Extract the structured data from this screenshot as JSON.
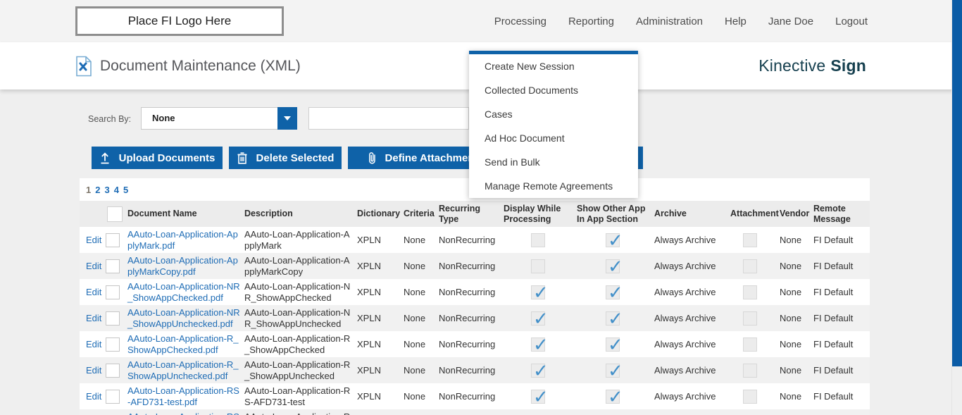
{
  "topbar": {
    "logo_placeholder": "Place FI Logo Here",
    "nav_items": [
      "Processing",
      "Reporting",
      "Administration",
      "Help",
      "Jane Doe",
      "Logout"
    ]
  },
  "header": {
    "page_title": "Document Maintenance (XML)",
    "brand_regular": "Kinective",
    "brand_bold": "Sign"
  },
  "processing_menu": {
    "items": [
      "Create New Session",
      "Collected Documents",
      "Cases",
      "Ad Hoc Document",
      "Send in Bulk",
      "Manage Remote Agreements"
    ]
  },
  "search": {
    "label": "Search By:",
    "selected_option": "None",
    "query_value": "",
    "query_placeholder": ""
  },
  "toolbar": {
    "upload_label": "Upload Documents",
    "delete_label": "Delete Selected",
    "attachment_label": "Define Attachment",
    "icons": [
      "upload-icon",
      "trash-icon",
      "paperclip-icon"
    ]
  },
  "pagination": {
    "pages": [
      "1",
      "2",
      "3",
      "4",
      "5"
    ],
    "current_page": "1"
  },
  "table": {
    "edit_label": "Edit",
    "columns": [
      "Document Name",
      "Description",
      "Dictionary",
      "Criteria",
      "Recurring Type",
      "Display While Processing",
      "Show Other App In App Section",
      "Archive",
      "Attachment",
      "Vendor",
      "Remote Message"
    ],
    "rows": [
      {
        "edit": "Edit",
        "name": "AAuto-Loan-Application-ApplyMark.pdf",
        "description": "AAuto-Loan-Application-ApplyMark",
        "dictionary": "XPLN",
        "criteria": "None",
        "recurring": "NonRecurring",
        "display_while_processing": false,
        "show_other_app": true,
        "archive": "Always Archive",
        "attachment": false,
        "vendor": "None",
        "remote_message": "FI Default"
      },
      {
        "edit": "Edit",
        "name": "AAuto-Loan-Application-ApplyMarkCopy.pdf",
        "description": "AAuto-Loan-Application-ApplyMarkCopy",
        "dictionary": "XPLN",
        "criteria": "None",
        "recurring": "NonRecurring",
        "display_while_processing": false,
        "show_other_app": true,
        "archive": "Always Archive",
        "attachment": false,
        "vendor": "None",
        "remote_message": "FI Default"
      },
      {
        "edit": "Edit",
        "name": "AAuto-Loan-Application-NR_ShowAppChecked.pdf",
        "description": "AAuto-Loan-Application-NR_ShowAppChecked",
        "dictionary": "XPLN",
        "criteria": "None",
        "recurring": "NonRecurring",
        "display_while_processing": true,
        "show_other_app": true,
        "archive": "Always Archive",
        "attachment": false,
        "vendor": "None",
        "remote_message": "FI Default"
      },
      {
        "edit": "Edit",
        "name": "AAuto-Loan-Application-NR_ShowAppUnchecked.pdf",
        "description": "AAuto-Loan-Application-NR_ShowAppUnchecked",
        "dictionary": "XPLN",
        "criteria": "None",
        "recurring": "NonRecurring",
        "display_while_processing": true,
        "show_other_app": true,
        "archive": "Always Archive",
        "attachment": false,
        "vendor": "None",
        "remote_message": "FI Default"
      },
      {
        "edit": "Edit",
        "name": "AAuto-Loan-Application-R_ShowAppChecked.pdf",
        "description": "AAuto-Loan-Application-R_ShowAppChecked",
        "dictionary": "XPLN",
        "criteria": "None",
        "recurring": "NonRecurring",
        "display_while_processing": true,
        "show_other_app": true,
        "archive": "Always Archive",
        "attachment": false,
        "vendor": "None",
        "remote_message": "FI Default"
      },
      {
        "edit": "Edit",
        "name": "AAuto-Loan-Application-R_ShowAppUnchecked.pdf",
        "description": "AAuto-Loan-Application-R_ShowAppUnchecked",
        "dictionary": "XPLN",
        "criteria": "None",
        "recurring": "NonRecurring",
        "display_while_processing": true,
        "show_other_app": true,
        "archive": "Always Archive",
        "attachment": false,
        "vendor": "None",
        "remote_message": "FI Default"
      },
      {
        "edit": "Edit",
        "name": "AAuto-Loan-Application-RS-AFD731-test.pdf",
        "description": "AAuto-Loan-Application-RS-AFD731-test",
        "dictionary": "XPLN",
        "criteria": "None",
        "recurring": "NonRecurring",
        "display_while_processing": true,
        "show_other_app": true,
        "archive": "Always Archive",
        "attachment": false,
        "vendor": "None",
        "remote_message": "FI Default"
      },
      {
        "edit": "",
        "name": "AAuto-Loan-Application-RS-",
        "description": "AAuto-Loan-Application-RS-",
        "dictionary": "",
        "criteria": "",
        "recurring": "",
        "display_while_processing": null,
        "show_other_app": null,
        "archive": "",
        "attachment": null,
        "vendor": "",
        "remote_message": ""
      }
    ]
  },
  "colors": {
    "accent_blue": "#0f62a8",
    "link_blue": "#1e6cb5",
    "brand_teal": "#16404f",
    "check_blue": "#4390c9"
  }
}
